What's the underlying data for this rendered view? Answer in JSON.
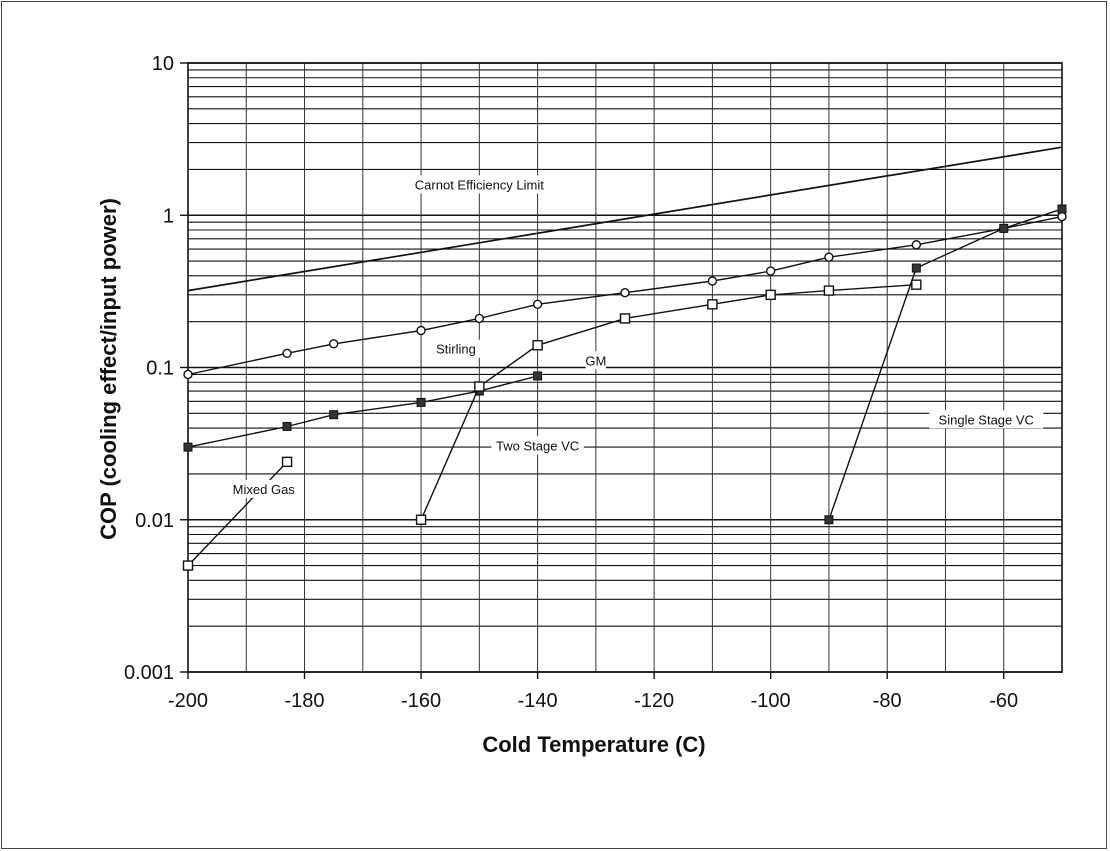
{
  "chart_data": {
    "type": "line",
    "title": "",
    "xlabel": "Cold Temperature  (C)",
    "ylabel": "COP  (cooling effect/input power)",
    "xlim": [
      -200,
      -50
    ],
    "ylim": [
      0.001,
      10
    ],
    "yscale": "log",
    "grid": true,
    "x_ticks": [
      -200,
      -180,
      -160,
      -140,
      -120,
      -100,
      -80,
      -60
    ],
    "x_tick_labels": [
      "-200",
      "-180",
      "-160",
      "-140",
      "-120",
      "-100",
      "-80",
      "-60"
    ],
    "y_ticks": [
      0.001,
      0.01,
      0.1,
      1,
      10
    ],
    "y_tick_labels": [
      "0.001",
      "0.01",
      "0.1",
      "1",
      "10"
    ],
    "series": [
      {
        "name": "Carnot Efficiency Limit",
        "marker": "none",
        "x": [
          -200,
          -50
        ],
        "y": [
          0.32,
          2.8
        ],
        "label_x": -150,
        "label_y": 1.5
      },
      {
        "name": "Stirling",
        "marker": "open-circle",
        "x": [
          -200,
          -183,
          -175,
          -160,
          -150,
          -140,
          -125,
          -110,
          -100,
          -90,
          -75,
          -60,
          -50
        ],
        "y": [
          0.09,
          0.124,
          0.143,
          0.175,
          0.21,
          0.26,
          0.31,
          0.37,
          0.43,
          0.53,
          0.64,
          0.82,
          0.98
        ],
        "label_x": -154,
        "label_y": 0.125
      },
      {
        "name": "GM",
        "marker": "square",
        "x": [
          -200,
          -183,
          -175,
          -160,
          -150,
          -140
        ],
        "y": [
          0.03,
          0.041,
          0.049,
          0.059,
          0.07,
          0.088
        ],
        "label_x": -130,
        "label_y": 0.105
      },
      {
        "name": "Two Stage VC",
        "marker": "open-square",
        "x": [
          -160,
          -150,
          -140,
          -125,
          -110,
          -100,
          -90,
          -75
        ],
        "y": [
          0.01,
          0.075,
          0.14,
          0.21,
          0.26,
          0.3,
          0.32,
          0.35
        ],
        "label_x": -140,
        "label_y": 0.029
      },
      {
        "name": "Single Stage VC",
        "marker": "square",
        "x": [
          -90,
          -75,
          -60,
          -50
        ],
        "y": [
          0.01,
          0.45,
          0.82,
          1.1
        ],
        "label_x": -63,
        "label_y": 0.043
      },
      {
        "name": "Mixed Gas",
        "marker": "open-square",
        "x": [
          -200,
          -183
        ],
        "y": [
          0.005,
          0.024
        ],
        "label_x": -187,
        "label_y": 0.015
      }
    ]
  }
}
